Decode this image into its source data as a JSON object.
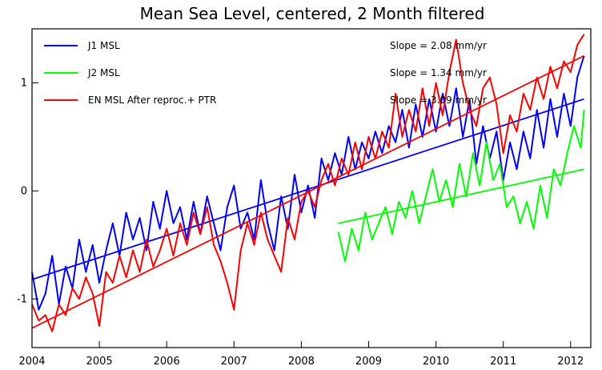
{
  "chart_data": {
    "type": "line",
    "title": "Mean Sea Level, centered, 2 Month filtered",
    "xlabel": "",
    "ylabel": "",
    "xlim": [
      2004.0,
      2012.3
    ],
    "ylim": [
      -1.45,
      1.5
    ],
    "x_ticks": [
      2004,
      2005,
      2006,
      2007,
      2008,
      2009,
      2010,
      2011,
      2012
    ],
    "y_ticks": [
      -1,
      0,
      1
    ],
    "legend_position": "top",
    "grid": false,
    "series": [
      {
        "name": "J1 MSL",
        "slope_label": "Slope = 2.08 mm/yr",
        "color": "#0000ff",
        "x": [
          2004.0,
          2004.1,
          2004.2,
          2004.3,
          2004.4,
          2004.5,
          2004.6,
          2004.7,
          2004.8,
          2004.9,
          2005.0,
          2005.1,
          2005.2,
          2005.3,
          2005.4,
          2005.5,
          2005.6,
          2005.7,
          2005.8,
          2005.9,
          2006.0,
          2006.1,
          2006.2,
          2006.3,
          2006.4,
          2006.5,
          2006.6,
          2006.7,
          2006.8,
          2006.9,
          2007.0,
          2007.1,
          2007.2,
          2007.3,
          2007.4,
          2007.5,
          2007.6,
          2007.7,
          2007.8,
          2007.9,
          2008.0,
          2008.1,
          2008.2,
          2008.3,
          2008.4,
          2008.5,
          2008.6,
          2008.7,
          2008.8,
          2008.9,
          2009.0,
          2009.1,
          2009.2,
          2009.3,
          2009.4,
          2009.5,
          2009.6,
          2009.7,
          2009.8,
          2009.9,
          2010.0,
          2010.1,
          2010.2,
          2010.3,
          2010.4,
          2010.5,
          2010.6,
          2010.7,
          2010.8,
          2010.9,
          2011.0,
          2011.1,
          2011.2,
          2011.3,
          2011.4,
          2011.5,
          2011.6,
          2011.7,
          2011.8,
          2011.9,
          2012.0,
          2012.1,
          2012.2
        ],
        "values": [
          -0.75,
          -1.1,
          -0.95,
          -0.6,
          -1.05,
          -0.7,
          -0.9,
          -0.45,
          -0.75,
          -0.5,
          -0.85,
          -0.55,
          -0.3,
          -0.6,
          -0.2,
          -0.45,
          -0.25,
          -0.55,
          -0.1,
          -0.35,
          0.0,
          -0.3,
          -0.15,
          -0.45,
          -0.1,
          -0.4,
          -0.05,
          -0.3,
          -0.55,
          -0.15,
          0.05,
          -0.35,
          -0.2,
          -0.45,
          0.1,
          -0.3,
          -0.55,
          -0.05,
          -0.35,
          0.15,
          -0.2,
          0.05,
          -0.25,
          0.3,
          0.1,
          0.35,
          0.15,
          0.5,
          0.2,
          0.45,
          0.3,
          0.55,
          0.35,
          0.6,
          0.45,
          0.75,
          0.4,
          0.8,
          0.5,
          0.85,
          0.55,
          0.9,
          0.6,
          0.95,
          0.5,
          0.85,
          0.25,
          0.6,
          0.3,
          0.55,
          0.1,
          0.45,
          0.2,
          0.55,
          0.3,
          0.75,
          0.4,
          0.85,
          0.5,
          0.9,
          0.6,
          1.05,
          1.25
        ],
        "trend": [
          -0.82,
          0.85
        ]
      },
      {
        "name": "J2 MSL",
        "slope_label": "Slope = 1.34 mm/yr",
        "color": "#00ff00",
        "x": [
          2008.55,
          2008.65,
          2008.75,
          2008.85,
          2008.95,
          2009.05,
          2009.15,
          2009.25,
          2009.35,
          2009.45,
          2009.55,
          2009.65,
          2009.75,
          2009.85,
          2009.95,
          2010.05,
          2010.15,
          2010.25,
          2010.35,
          2010.45,
          2010.55,
          2010.65,
          2010.75,
          2010.85,
          2010.95,
          2011.05,
          2011.15,
          2011.25,
          2011.35,
          2011.45,
          2011.55,
          2011.65,
          2011.75,
          2011.85,
          2011.95,
          2012.05,
          2012.15,
          2012.2
        ],
        "values": [
          -0.38,
          -0.65,
          -0.35,
          -0.55,
          -0.2,
          -0.45,
          -0.3,
          -0.15,
          -0.4,
          -0.1,
          -0.25,
          0.0,
          -0.3,
          -0.05,
          0.2,
          -0.1,
          0.1,
          -0.15,
          0.25,
          -0.05,
          0.35,
          0.05,
          0.45,
          0.1,
          0.25,
          -0.15,
          -0.05,
          -0.3,
          -0.1,
          -0.35,
          0.05,
          -0.25,
          0.2,
          0.05,
          0.35,
          0.6,
          0.4,
          0.75
        ],
        "trend": [
          -0.3,
          0.2
        ]
      },
      {
        "name": "EN MSL After reproc.+ PTR",
        "slope_label": "Slope = 3.09 mm/yr",
        "color": "#ff0000",
        "x": [
          2004.0,
          2004.1,
          2004.2,
          2004.3,
          2004.4,
          2004.5,
          2004.6,
          2004.7,
          2004.8,
          2004.9,
          2005.0,
          2005.1,
          2005.2,
          2005.3,
          2005.4,
          2005.5,
          2005.6,
          2005.7,
          2005.8,
          2005.9,
          2006.0,
          2006.1,
          2006.2,
          2006.3,
          2006.4,
          2006.5,
          2006.6,
          2006.7,
          2006.8,
          2006.9,
          2007.0,
          2007.1,
          2007.2,
          2007.3,
          2007.4,
          2007.5,
          2007.6,
          2007.7,
          2007.8,
          2007.9,
          2008.0,
          2008.1,
          2008.2,
          2008.3,
          2008.4,
          2008.5,
          2008.6,
          2008.7,
          2008.8,
          2008.9,
          2009.0,
          2009.1,
          2009.2,
          2009.3,
          2009.4,
          2009.5,
          2009.6,
          2009.7,
          2009.8,
          2009.9,
          2010.0,
          2010.1,
          2010.2,
          2010.3,
          2010.4,
          2010.5,
          2010.6,
          2010.7,
          2010.8,
          2010.9,
          2011.0,
          2011.1,
          2011.2,
          2011.3,
          2011.4,
          2011.5,
          2011.6,
          2011.7,
          2011.8,
          2011.9,
          2012.0,
          2012.1,
          2012.2
        ],
        "values": [
          -1.05,
          -1.2,
          -1.15,
          -1.3,
          -1.05,
          -1.15,
          -0.9,
          -1.0,
          -0.8,
          -0.95,
          -1.25,
          -0.75,
          -0.85,
          -0.6,
          -0.8,
          -0.55,
          -0.75,
          -0.45,
          -0.7,
          -0.55,
          -0.35,
          -0.6,
          -0.3,
          -0.5,
          -0.2,
          -0.4,
          -0.15,
          -0.5,
          -0.65,
          -0.85,
          -1.1,
          -0.55,
          -0.3,
          -0.5,
          -0.2,
          -0.45,
          -0.6,
          -0.75,
          -0.25,
          -0.45,
          -0.1,
          0.0,
          -0.15,
          0.1,
          0.25,
          0.05,
          0.3,
          0.15,
          0.45,
          0.2,
          0.5,
          0.3,
          0.55,
          0.4,
          0.9,
          0.5,
          0.75,
          0.55,
          0.95,
          0.6,
          1.0,
          0.7,
          1.1,
          1.4,
          1.0,
          0.75,
          0.6,
          0.95,
          1.05,
          0.8,
          0.35,
          0.7,
          0.55,
          0.9,
          0.75,
          1.05,
          0.85,
          1.15,
          0.95,
          1.2,
          1.1,
          1.35,
          1.45
        ],
        "trend": [
          -1.27,
          1.25
        ]
      }
    ]
  }
}
